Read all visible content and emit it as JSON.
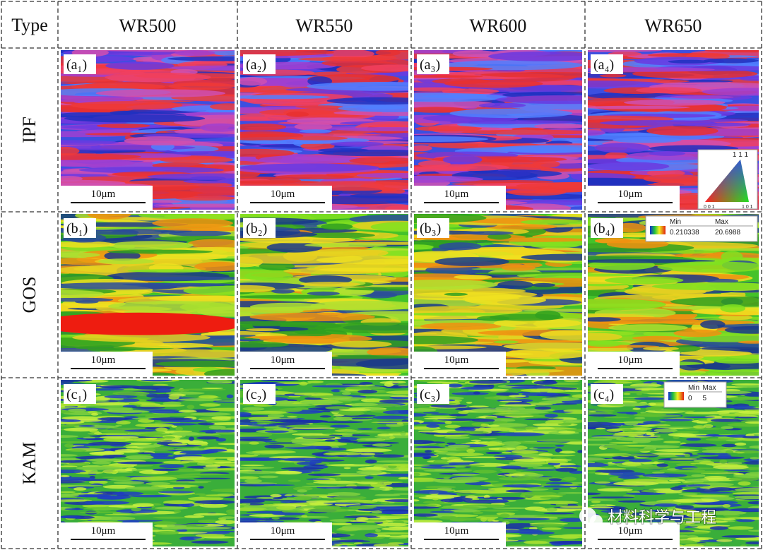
{
  "header": {
    "type_label": "Type",
    "columns": [
      "WR500",
      "WR550",
      "WR600",
      "WR650"
    ]
  },
  "rows": [
    {
      "label": "IPF",
      "panels": [
        "(a₁)",
        "(a₂)",
        "(a₃)",
        "(a₄)"
      ]
    },
    {
      "label": "GOS",
      "panels": [
        "(b₁)",
        "(b₂)",
        "(b₃)",
        "(b₄)"
      ]
    },
    {
      "label": "KAM",
      "panels": [
        "(c₁)",
        "(c₂)",
        "(c₃)",
        "(c₄)"
      ]
    }
  ],
  "scale_bar": "10μm",
  "ipf_legend": {
    "top": "1 1 1",
    "left": "0 0 1",
    "right": "1 0 1"
  },
  "gos_legend": {
    "min_label": "Min",
    "max_label": "Max",
    "min": 0.210338,
    "max": 20.6988
  },
  "kam_legend": {
    "min_label": "Min",
    "max_label": "Max",
    "min": 0,
    "max": 5
  },
  "watermark": "材料科学与工程"
}
